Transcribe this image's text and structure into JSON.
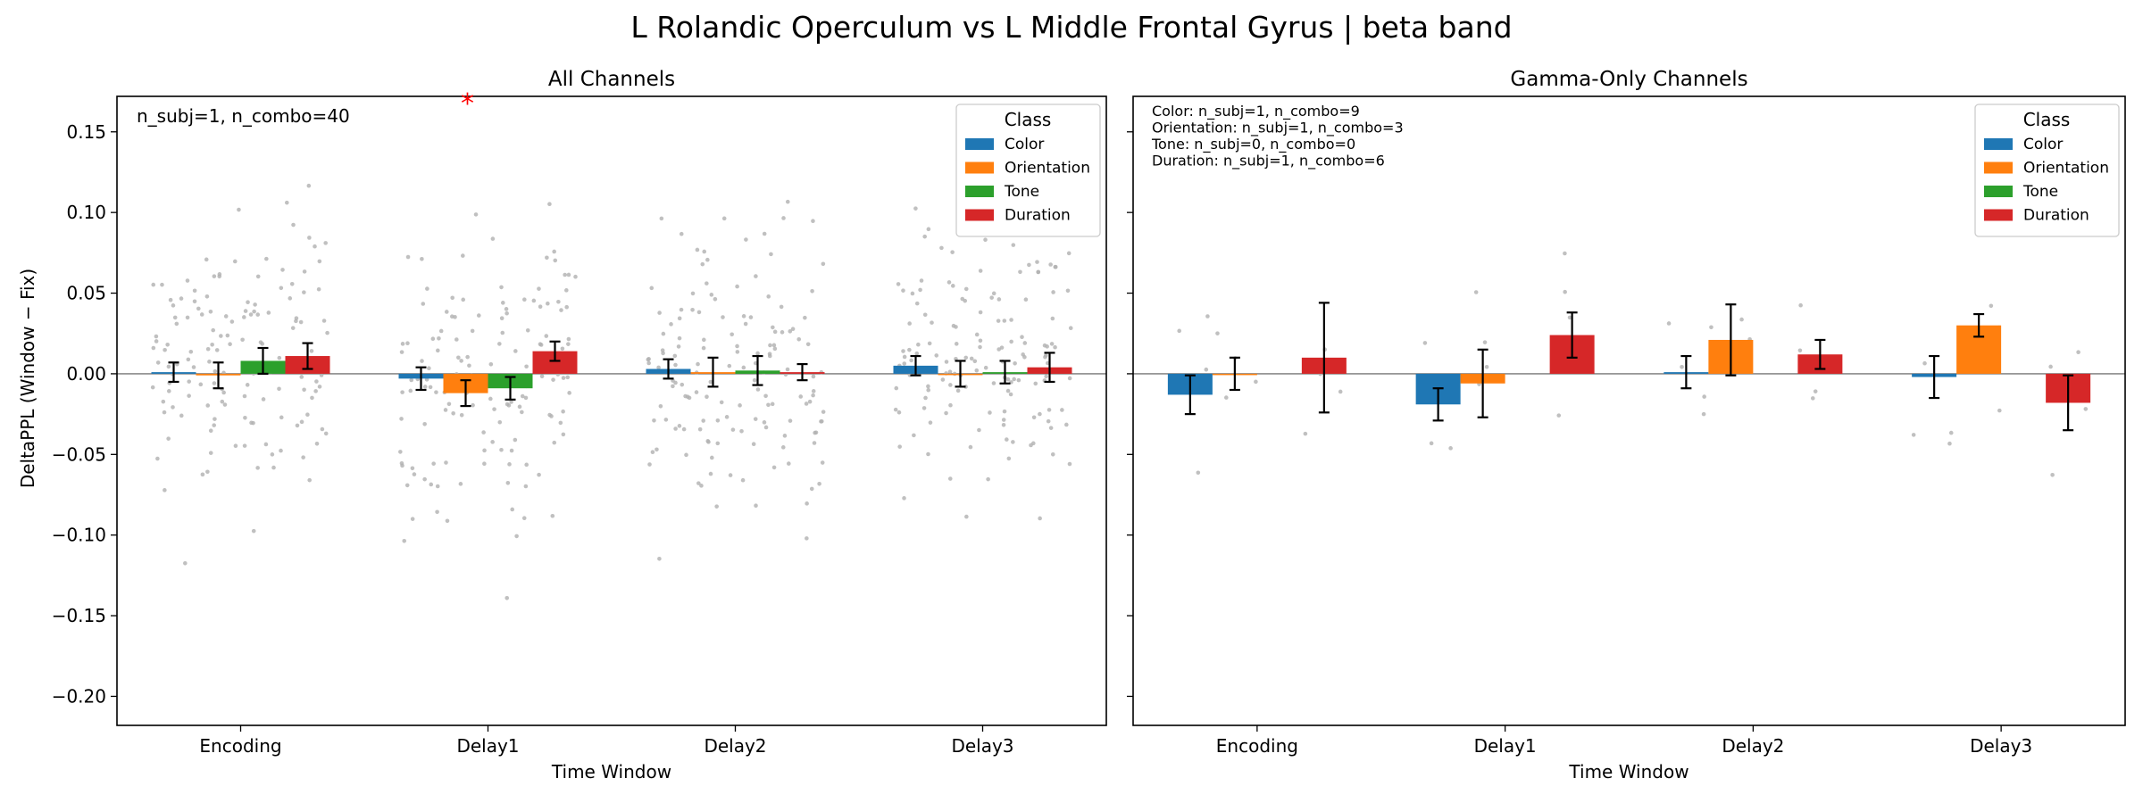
{
  "figure": {
    "suptitle": "L Rolandic Operculum vs L Middle Frontal Gyrus  |  beta band",
    "ylabel": "DeltaPPL (Window − Fix)",
    "xlabel": "Time Window"
  },
  "colors": {
    "Color": "#1f77b4",
    "Orientation": "#ff7f0e",
    "Tone": "#2ca02c",
    "Duration": "#d62728",
    "points": "#b0b0b0",
    "significance": "#ff0000"
  },
  "chart_data": [
    {
      "type": "bar",
      "title": "All Channels",
      "annotation": [
        "n_subj=1, n_combo=40"
      ],
      "significance_marker": {
        "text": "*",
        "window": "Delay1",
        "class": "Orientation"
      },
      "categories": [
        "Encoding",
        "Delay1",
        "Delay2",
        "Delay3"
      ],
      "xlabel": "Time Window",
      "ylabel": "DeltaPPL (Window − Fix)",
      "ylim": [
        -0.218,
        0.172
      ],
      "yticks": [
        0.15,
        0.1,
        0.05,
        0.0,
        -0.05,
        -0.1,
        -0.15,
        -0.2
      ],
      "ytick_labels": [
        "0.15",
        "0.10",
        "0.05",
        "0.00",
        "−0.05",
        "−0.10",
        "−0.15",
        "−0.20"
      ],
      "legend": {
        "title": "Class",
        "placement": "top-right"
      },
      "series": [
        {
          "name": "Color",
          "values": [
            0.001,
            -0.003,
            0.003,
            0.005
          ],
          "err": [
            0.006,
            0.007,
            0.006,
            0.006
          ]
        },
        {
          "name": "Orientation",
          "values": [
            -0.001,
            -0.012,
            0.001,
            0.0
          ],
          "err": [
            0.008,
            0.008,
            0.009,
            0.008
          ]
        },
        {
          "name": "Tone",
          "values": [
            0.008,
            -0.009,
            0.002,
            0.001
          ],
          "err": [
            0.008,
            0.007,
            0.009,
            0.007
          ]
        },
        {
          "name": "Duration",
          "values": [
            0.011,
            0.014,
            0.001,
            0.004
          ],
          "err": [
            0.008,
            0.006,
            0.005,
            0.009
          ]
        }
      ]
    },
    {
      "type": "bar",
      "title": "Gamma-Only Channels",
      "annotation": [
        "Color: n_subj=1, n_combo=9",
        "Orientation: n_subj=1, n_combo=3",
        "Tone: n_subj=0, n_combo=0",
        "Duration: n_subj=1, n_combo=6"
      ],
      "categories": [
        "Encoding",
        "Delay1",
        "Delay2",
        "Delay3"
      ],
      "xlabel": "Time Window",
      "ylim": [
        -0.218,
        0.172
      ],
      "legend": {
        "title": "Class",
        "placement": "top-right"
      },
      "series": [
        {
          "name": "Color",
          "values": [
            -0.013,
            -0.019,
            0.001,
            -0.002
          ],
          "err": [
            0.012,
            0.01,
            0.01,
            0.013
          ]
        },
        {
          "name": "Orientation",
          "values": [
            0.0,
            -0.006,
            0.021,
            0.03
          ],
          "err": [
            0.01,
            0.021,
            0.022,
            0.007
          ]
        },
        {
          "name": "Tone",
          "values": [
            null,
            null,
            null,
            null
          ],
          "err": [
            null,
            null,
            null,
            null
          ]
        },
        {
          "name": "Duration",
          "values": [
            0.01,
            0.024,
            0.012,
            -0.018
          ],
          "err": [
            0.034,
            0.014,
            0.009,
            0.017
          ]
        }
      ]
    }
  ]
}
